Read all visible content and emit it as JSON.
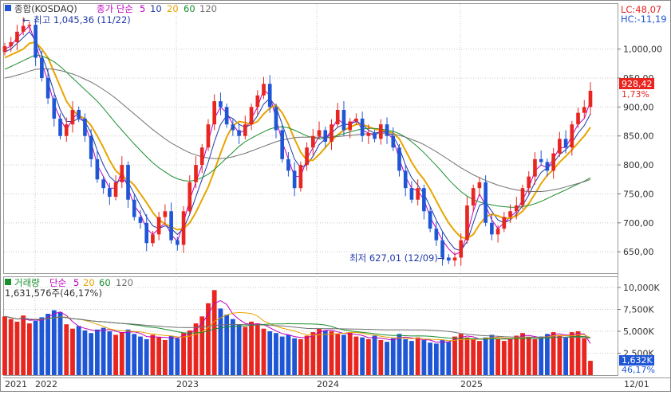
{
  "colors": {
    "up": "#e8251f",
    "down": "#1f56d6",
    "ma5": "#c000c0",
    "ma10": "#1f3aa8",
    "ma20": "#e8a400",
    "ma60": "#1a8f2e",
    "ma120": "#707070",
    "axis_text": "#333333",
    "grid": "#c9c9c9",
    "current_bg": "#e8251f",
    "vol_current_bg": "#1f56d6"
  },
  "top_panel": {
    "legend": {
      "title": "종합(KOSDAQ)",
      "price_label": "종가 단순",
      "periods": [
        "5",
        "10",
        "20",
        "60",
        "120"
      ]
    },
    "corner": {
      "lc": "LC:48,07",
      "hc": "HC:-11,19"
    },
    "high_annotation": "최고 1,045,36 (11/22)",
    "low_annotation": "최저 627,01 (12/09)",
    "current_price": "928,42",
    "current_change": "1,73%",
    "y_ticks": [
      "1,000,00",
      "950,00",
      "900,00",
      "850,00",
      "800,00",
      "750,00",
      "700,00",
      "650,00"
    ]
  },
  "volume_panel": {
    "legend": {
      "title": "거래량",
      "label": "단순",
      "periods": [
        "5",
        "20",
        "60",
        "120"
      ]
    },
    "current_value_text": "1,631,576주(46,17%)",
    "current_volume": "1,632K",
    "current_pct": "46,17%",
    "y_ticks": [
      "10,000K",
      "7,500K",
      "5,000K",
      "2,500K"
    ]
  },
  "x_axis": {
    "labels": [
      "2021",
      "2022",
      "2023",
      "2024",
      "2025",
      "12/01"
    ]
  },
  "chart_data": [
    {
      "type": "candlestick",
      "title": "종합(KOSDAQ)",
      "x_labels": [
        "2021",
        "2022",
        "2023",
        "2024",
        "2025"
      ],
      "ylim": [
        620,
        1060
      ],
      "y_ticks": [
        650,
        700,
        750,
        800,
        850,
        900,
        950,
        1000
      ],
      "high": {
        "value": 1045.36,
        "date": "11/22"
      },
      "low": {
        "value": 627.01,
        "date": "12/09"
      },
      "last": {
        "value": 928.42,
        "change_pct": 1.73
      },
      "series": [
        {
          "name": "5",
          "values": [
            1000,
            1005,
            1020,
            1030,
            1040,
            1010,
            975,
            945,
            905,
            880,
            860,
            880,
            890,
            870,
            840,
            800,
            780,
            760,
            760,
            790,
            760,
            730,
            715,
            690,
            680,
            690,
            700,
            680,
            668,
            700,
            740,
            770,
            800,
            840,
            880,
            900,
            890,
            870,
            855,
            860,
            880,
            900,
            930,
            920,
            880,
            840,
            810,
            780,
            780,
            810,
            830,
            850,
            845,
            860,
            880,
            870,
            870,
            880,
            860,
            855,
            850,
            860,
            855,
            845,
            810,
            780,
            760,
            755,
            740,
            710,
            690,
            670,
            655,
            645,
            650,
            680,
            720,
            750,
            730,
            705,
            690,
            700,
            710,
            720,
            740,
            760,
            790,
            800,
            795,
            810,
            830,
            830,
            850,
            870,
            880,
            910
          ]
        },
        {
          "name": "10",
          "values": [
            995,
            1000,
            1010,
            1020,
            1030,
            1015,
            990,
            960,
            925,
            895,
            875,
            875,
            880,
            875,
            855,
            825,
            800,
            780,
            770,
            775,
            770,
            750,
            730,
            710,
            695,
            690,
            695,
            690,
            680,
            690,
            715,
            745,
            775,
            805,
            840,
            870,
            885,
            880,
            870,
            865,
            870,
            885,
            905,
            915,
            900,
            870,
            840,
            810,
            795,
            800,
            815,
            835,
            845,
            855,
            865,
            870,
            870,
            875,
            870,
            860,
            855,
            857,
            856,
            850,
            830,
            800,
            778,
            765,
            750,
            728,
            705,
            685,
            668,
            655,
            652,
            668,
            700,
            730,
            735,
            720,
            705,
            700,
            705,
            715,
            730,
            748,
            770,
            787,
            795,
            803,
            818,
            826,
            838,
            855,
            868,
            888
          ]
        },
        {
          "name": "20",
          "values": [
            985,
            990,
            995,
            1000,
            1010,
            1012,
            1000,
            985,
            960,
            935,
            910,
            895,
            885,
            880,
            868,
            850,
            830,
            808,
            790,
            780,
            775,
            765,
            750,
            735,
            718,
            705,
            698,
            693,
            688,
            690,
            700,
            718,
            740,
            762,
            790,
            820,
            848,
            868,
            875,
            873,
            870,
            875,
            888,
            898,
            903,
            890,
            870,
            845,
            822,
            808,
            808,
            818,
            830,
            842,
            852,
            860,
            865,
            870,
            870,
            866,
            862,
            860,
            858,
            855,
            845,
            825,
            805,
            788,
            775,
            758,
            738,
            718,
            700,
            686,
            675,
            673,
            680,
            697,
            710,
            715,
            712,
            708,
            708,
            712,
            720,
            733,
            750,
            768,
            782,
            792,
            805,
            815,
            826,
            838,
            850,
            865
          ]
        },
        {
          "name": "60",
          "values": [
            965,
            970,
            975,
            980,
            985,
            990,
            988,
            984,
            978,
            970,
            960,
            950,
            940,
            930,
            920,
            910,
            898,
            885,
            872,
            860,
            848,
            836,
            825,
            814,
            804,
            795,
            788,
            781,
            776,
            773,
            772,
            774,
            778,
            784,
            792,
            802,
            812,
            822,
            832,
            840,
            846,
            852,
            857,
            862,
            865,
            866,
            864,
            860,
            855,
            850,
            847,
            845,
            846,
            848,
            851,
            854,
            857,
            860,
            862,
            863,
            863,
            862,
            860,
            858,
            854,
            848,
            840,
            831,
            821,
            810,
            799,
            787,
            775,
            764,
            754,
            746,
            740,
            736,
            733,
            731,
            729,
            728,
            727,
            727,
            728,
            730,
            733,
            737,
            742,
            747,
            752,
            757,
            762,
            767,
            772,
            778
          ]
        },
        {
          "name": "120",
          "values": [
            950,
            952,
            955,
            958,
            962,
            965,
            966,
            966,
            965,
            963,
            960,
            957,
            953,
            948,
            943,
            937,
            930,
            923,
            915,
            906,
            897,
            888,
            879,
            870,
            861,
            853,
            845,
            838,
            832,
            826,
            821,
            817,
            814,
            812,
            811,
            811,
            812,
            814,
            817,
            820,
            824,
            828,
            832,
            836,
            840,
            843,
            845,
            847,
            848,
            848,
            848,
            848,
            848,
            848,
            849,
            850,
            851,
            852,
            853,
            854,
            854,
            854,
            854,
            853,
            851,
            848,
            844,
            840,
            835,
            829,
            823,
            816,
            809,
            802,
            795,
            789,
            783,
            778,
            773,
            769,
            765,
            762,
            759,
            757,
            755,
            754,
            754,
            754,
            755,
            757,
            759,
            762,
            765,
            768,
            771,
            775
          ]
        },
        {
          "name": "close",
          "values": [
            1005,
            1012,
            1030,
            1040,
            1042,
            985,
            950,
            915,
            880,
            850,
            870,
            895,
            880,
            850,
            810,
            775,
            760,
            745,
            770,
            800,
            740,
            710,
            700,
            665,
            680,
            710,
            720,
            670,
            662,
            720,
            770,
            800,
            830,
            870,
            910,
            900,
            870,
            860,
            850,
            870,
            900,
            920,
            940,
            900,
            860,
            810,
            790,
            760,
            800,
            830,
            850,
            860,
            840,
            870,
            895,
            860,
            875,
            880,
            850,
            855,
            845,
            870,
            850,
            830,
            790,
            760,
            740,
            760,
            720,
            690,
            670,
            640,
            635,
            640,
            670,
            730,
            760,
            770,
            700,
            680,
            690,
            710,
            720,
            730,
            760,
            780,
            810,
            805,
            790,
            820,
            845,
            830,
            870,
            890,
            900,
            928
          ]
        }
      ]
    },
    {
      "type": "bar",
      "title": "거래량",
      "y_ticks": [
        2500,
        5000,
        7500,
        10000
      ],
      "ylim": [
        0,
        11000
      ],
      "units": "K",
      "values": [
        6700,
        6400,
        6100,
        6800,
        5900,
        6200,
        6600,
        7000,
        7400,
        7200,
        5800,
        5300,
        5600,
        5100,
        4800,
        5200,
        5400,
        5000,
        4600,
        4900,
        5200,
        4700,
        4400,
        4100,
        4600,
        4300,
        4000,
        4500,
        4200,
        4800,
        5100,
        5900,
        6700,
        8200,
        9700,
        7600,
        6900,
        6400,
        5800,
        5500,
        6100,
        5900,
        5300,
        5000,
        4800,
        4400,
        4600,
        4200,
        4100,
        4500,
        4900,
        5300,
        5100,
        5000,
        4700,
        4600,
        4900,
        4400,
        4300,
        4100,
        4500,
        4000,
        3800,
        4200,
        4700,
        4100,
        3900,
        4300,
        4000,
        3700,
        3600,
        4000,
        3800,
        4400,
        4700,
        4300,
        4100,
        3900,
        4300,
        4600,
        4100,
        3900,
        4200,
        4500,
        4800,
        4300,
        4100,
        4400,
        4700,
        4900,
        4500,
        4300,
        4900,
        5000,
        4200,
        1632
      ]
    }
  ]
}
